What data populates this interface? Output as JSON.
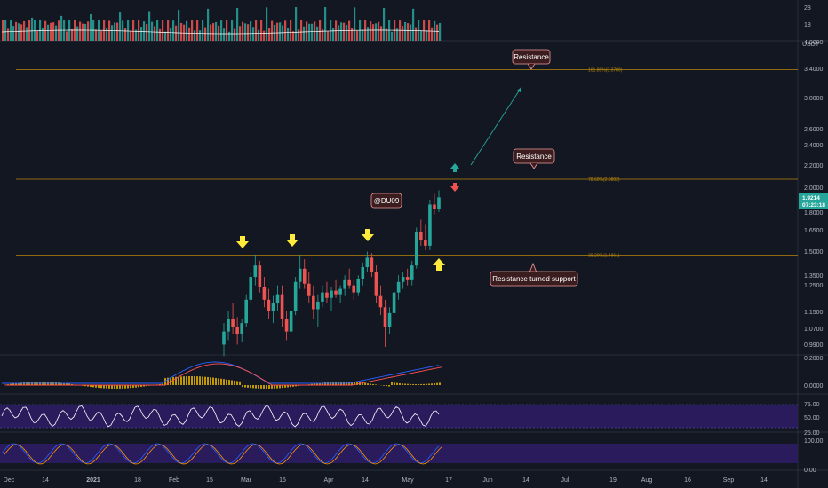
{
  "chart_data": {
    "type": "candlestick",
    "symbol_unit": "USDT",
    "last_price": "1.9214",
    "countdown": "07:23:18",
    "price_axis_ticks": [
      "4.0000",
      "3.4000",
      "3.0000",
      "2.6000",
      "2.4000",
      "2.2000",
      "2.0000",
      "1.8000",
      "1.6500",
      "1.5000",
      "1.3500",
      "1.2500",
      "1.1500",
      "1.0700",
      "0.9900"
    ],
    "volume_axis_ticks": [
      "28",
      "18"
    ],
    "macd_axis_ticks": [
      "0.2000",
      "0.0000"
    ],
    "rsi_axis_ticks": [
      "75.00",
      "50.00",
      "25.00"
    ],
    "stoch_axis_ticks": [
      "100.00",
      "0.00"
    ],
    "time_axis_labels": [
      "Dec",
      "14",
      "2021",
      "18",
      "Feb",
      "15",
      "Mar",
      "15",
      "Apr",
      "14",
      "May",
      "17",
      "Jun",
      "14",
      "Jul",
      "19",
      "Aug",
      "16",
      "Sep",
      "14"
    ],
    "fib_levels": [
      {
        "label": "161.80%(3.3789)",
        "price": 3.3789
      },
      {
        "label": "78.60%(2.0802)",
        "price": 2.0802
      },
      {
        "label": "38.20%(1.4861)",
        "price": 1.4861
      }
    ],
    "annotations": {
      "resistance_top": "Resistance",
      "resistance_mid": "Resistance",
      "support": "Resistance turned support",
      "author": "@DU09"
    },
    "colors": {
      "bull": "#26a69a",
      "bear": "#ef5350",
      "fib": "#b8860b",
      "arrow": "#ffeb3b",
      "macd": "#2962ff",
      "signal": "#ff5252",
      "rsi_bg": "#2a1b5c"
    },
    "candles": [
      [
        1.0,
        1.1,
        0.95,
        1.06
      ],
      [
        1.06,
        1.16,
        1.02,
        1.12
      ],
      [
        1.12,
        1.2,
        1.05,
        1.08
      ],
      [
        1.08,
        1.13,
        1.0,
        1.05
      ],
      [
        1.05,
        1.12,
        1.01,
        1.1
      ],
      [
        1.1,
        1.25,
        1.08,
        1.22
      ],
      [
        1.22,
        1.38,
        1.2,
        1.35
      ],
      [
        1.35,
        1.49,
        1.3,
        1.42
      ],
      [
        1.42,
        1.45,
        1.26,
        1.29
      ],
      [
        1.29,
        1.35,
        1.18,
        1.22
      ],
      [
        1.22,
        1.28,
        1.12,
        1.16
      ],
      [
        1.16,
        1.24,
        1.1,
        1.2
      ],
      [
        1.2,
        1.3,
        1.16,
        1.25
      ],
      [
        1.25,
        1.3,
        1.08,
        1.12
      ],
      [
        1.12,
        1.16,
        1.02,
        1.06
      ],
      [
        1.06,
        1.2,
        1.04,
        1.16
      ],
      [
        1.16,
        1.35,
        1.14,
        1.32
      ],
      [
        1.32,
        1.49,
        1.28,
        1.4
      ],
      [
        1.4,
        1.46,
        1.28,
        1.31
      ],
      [
        1.31,
        1.38,
        1.2,
        1.24
      ],
      [
        1.24,
        1.3,
        1.12,
        1.17
      ],
      [
        1.17,
        1.25,
        1.08,
        1.21
      ],
      [
        1.21,
        1.3,
        1.18,
        1.26
      ],
      [
        1.26,
        1.32,
        1.2,
        1.23
      ],
      [
        1.23,
        1.29,
        1.16,
        1.27
      ],
      [
        1.27,
        1.33,
        1.23,
        1.25
      ],
      [
        1.25,
        1.3,
        1.2,
        1.28
      ],
      [
        1.28,
        1.36,
        1.24,
        1.33
      ],
      [
        1.33,
        1.4,
        1.28,
        1.3
      ],
      [
        1.3,
        1.33,
        1.22,
        1.26
      ],
      [
        1.26,
        1.36,
        1.24,
        1.34
      ],
      [
        1.34,
        1.44,
        1.3,
        1.41
      ],
      [
        1.41,
        1.51,
        1.38,
        1.47
      ],
      [
        1.47,
        1.5,
        1.35,
        1.38
      ],
      [
        1.38,
        1.42,
        1.2,
        1.24
      ],
      [
        1.24,
        1.3,
        1.14,
        1.18
      ],
      [
        1.18,
        1.22,
        0.99,
        1.08
      ],
      [
        1.08,
        1.18,
        1.05,
        1.15
      ],
      [
        1.15,
        1.28,
        1.12,
        1.26
      ],
      [
        1.26,
        1.36,
        1.22,
        1.32
      ],
      [
        1.32,
        1.38,
        1.28,
        1.35
      ],
      [
        1.35,
        1.4,
        1.3,
        1.33
      ],
      [
        1.33,
        1.45,
        1.3,
        1.42
      ],
      [
        1.42,
        1.68,
        1.4,
        1.65
      ],
      [
        1.65,
        1.74,
        1.55,
        1.59
      ],
      [
        1.59,
        1.7,
        1.52,
        1.55
      ],
      [
        1.55,
        1.9,
        1.52,
        1.86
      ],
      [
        1.86,
        1.95,
        1.78,
        1.82
      ],
      [
        1.82,
        1.98,
        1.8,
        1.92
      ]
    ]
  }
}
